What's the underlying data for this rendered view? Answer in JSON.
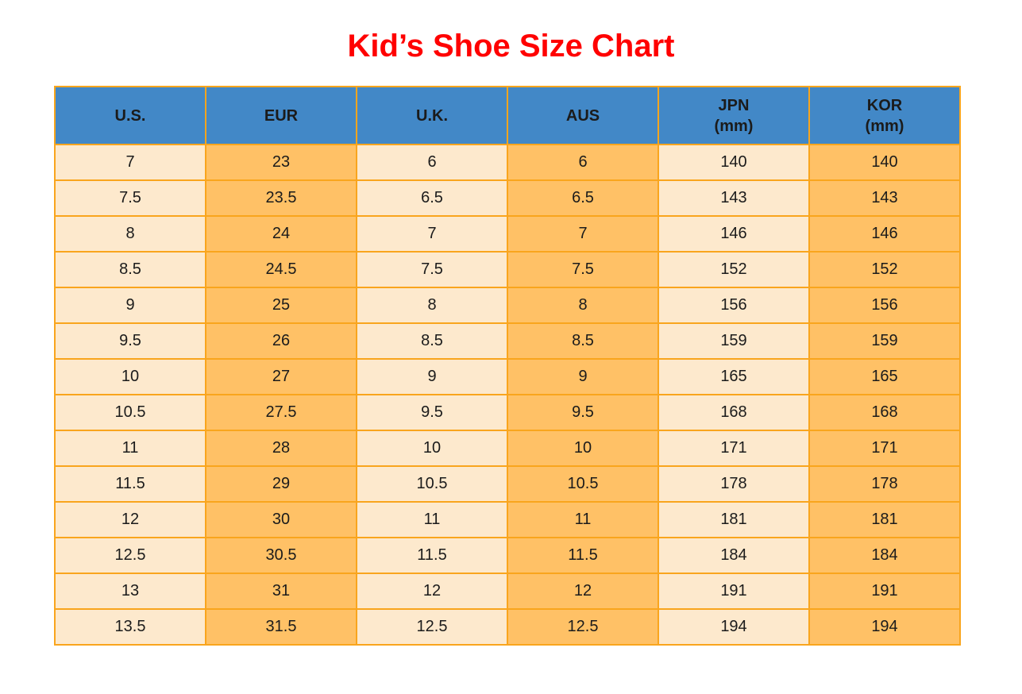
{
  "page": {
    "title": "Kid’s Shoe Size Chart"
  },
  "colors": {
    "title_red": "#ff0000",
    "header_blue": "#4288c7",
    "cell_cream": "#fde9cd",
    "cell_orange": "#ffc166",
    "border_orange": "#f9a51d",
    "text_black": "#1b1b1b"
  },
  "table": {
    "headers": [
      {
        "label": "U.S."
      },
      {
        "label": "EUR"
      },
      {
        "label": "U.K."
      },
      {
        "label": "AUS"
      },
      {
        "label": "JPN\n(mm)"
      },
      {
        "label": "KOR\n(mm)"
      }
    ],
    "rows": [
      [
        "7",
        "23",
        "6",
        "6",
        "140",
        "140"
      ],
      [
        "7.5",
        "23.5",
        "6.5",
        "6.5",
        "143",
        "143"
      ],
      [
        "8",
        "24",
        "7",
        "7",
        "146",
        "146"
      ],
      [
        "8.5",
        "24.5",
        "7.5",
        "7.5",
        "152",
        "152"
      ],
      [
        "9",
        "25",
        "8",
        "8",
        "156",
        "156"
      ],
      [
        "9.5",
        "26",
        "8.5",
        "8.5",
        "159",
        "159"
      ],
      [
        "10",
        "27",
        "9",
        "9",
        "165",
        "165"
      ],
      [
        "10.5",
        "27.5",
        "9.5",
        "9.5",
        "168",
        "168"
      ],
      [
        "11",
        "28",
        "10",
        "10",
        "171",
        "171"
      ],
      [
        "11.5",
        "29",
        "10.5",
        "10.5",
        "178",
        "178"
      ],
      [
        "12",
        "30",
        "11",
        "11",
        "181",
        "181"
      ],
      [
        "12.5",
        "30.5",
        "11.5",
        "11.5",
        "184",
        "184"
      ],
      [
        "13",
        "31",
        "12",
        "12",
        "191",
        "191"
      ],
      [
        "13.5",
        "31.5",
        "12.5",
        "12.5",
        "194",
        "194"
      ]
    ]
  },
  "chart_data": {
    "type": "table",
    "title": "Kid’s Shoe Size Chart",
    "columns": [
      "U.S.",
      "EUR",
      "U.K.",
      "AUS",
      "JPN (mm)",
      "KOR (mm)"
    ],
    "rows": [
      [
        7,
        23,
        6,
        6,
        140,
        140
      ],
      [
        7.5,
        23.5,
        6.5,
        6.5,
        143,
        143
      ],
      [
        8,
        24,
        7,
        7,
        146,
        146
      ],
      [
        8.5,
        24.5,
        7.5,
        7.5,
        152,
        152
      ],
      [
        9,
        25,
        8,
        8,
        156,
        156
      ],
      [
        9.5,
        26,
        8.5,
        8.5,
        159,
        159
      ],
      [
        10,
        27,
        9,
        9,
        165,
        165
      ],
      [
        10.5,
        27.5,
        9.5,
        9.5,
        168,
        168
      ],
      [
        11,
        28,
        10,
        10,
        171,
        171
      ],
      [
        11.5,
        29,
        10.5,
        10.5,
        178,
        178
      ],
      [
        12,
        30,
        11,
        11,
        181,
        181
      ],
      [
        12.5,
        30.5,
        11.5,
        11.5,
        184,
        184
      ],
      [
        13,
        31,
        12,
        12,
        191,
        191
      ],
      [
        13.5,
        31.5,
        12.5,
        12.5,
        194,
        194
      ]
    ],
    "layout": {
      "header_background": "#4288c7",
      "odd_column_background": "#fde9cd",
      "even_column_background": "#ffc166",
      "grid": true,
      "grid_color": "#f9a51d",
      "title_color": "#ff0000",
      "title_position": "top-center"
    }
  }
}
